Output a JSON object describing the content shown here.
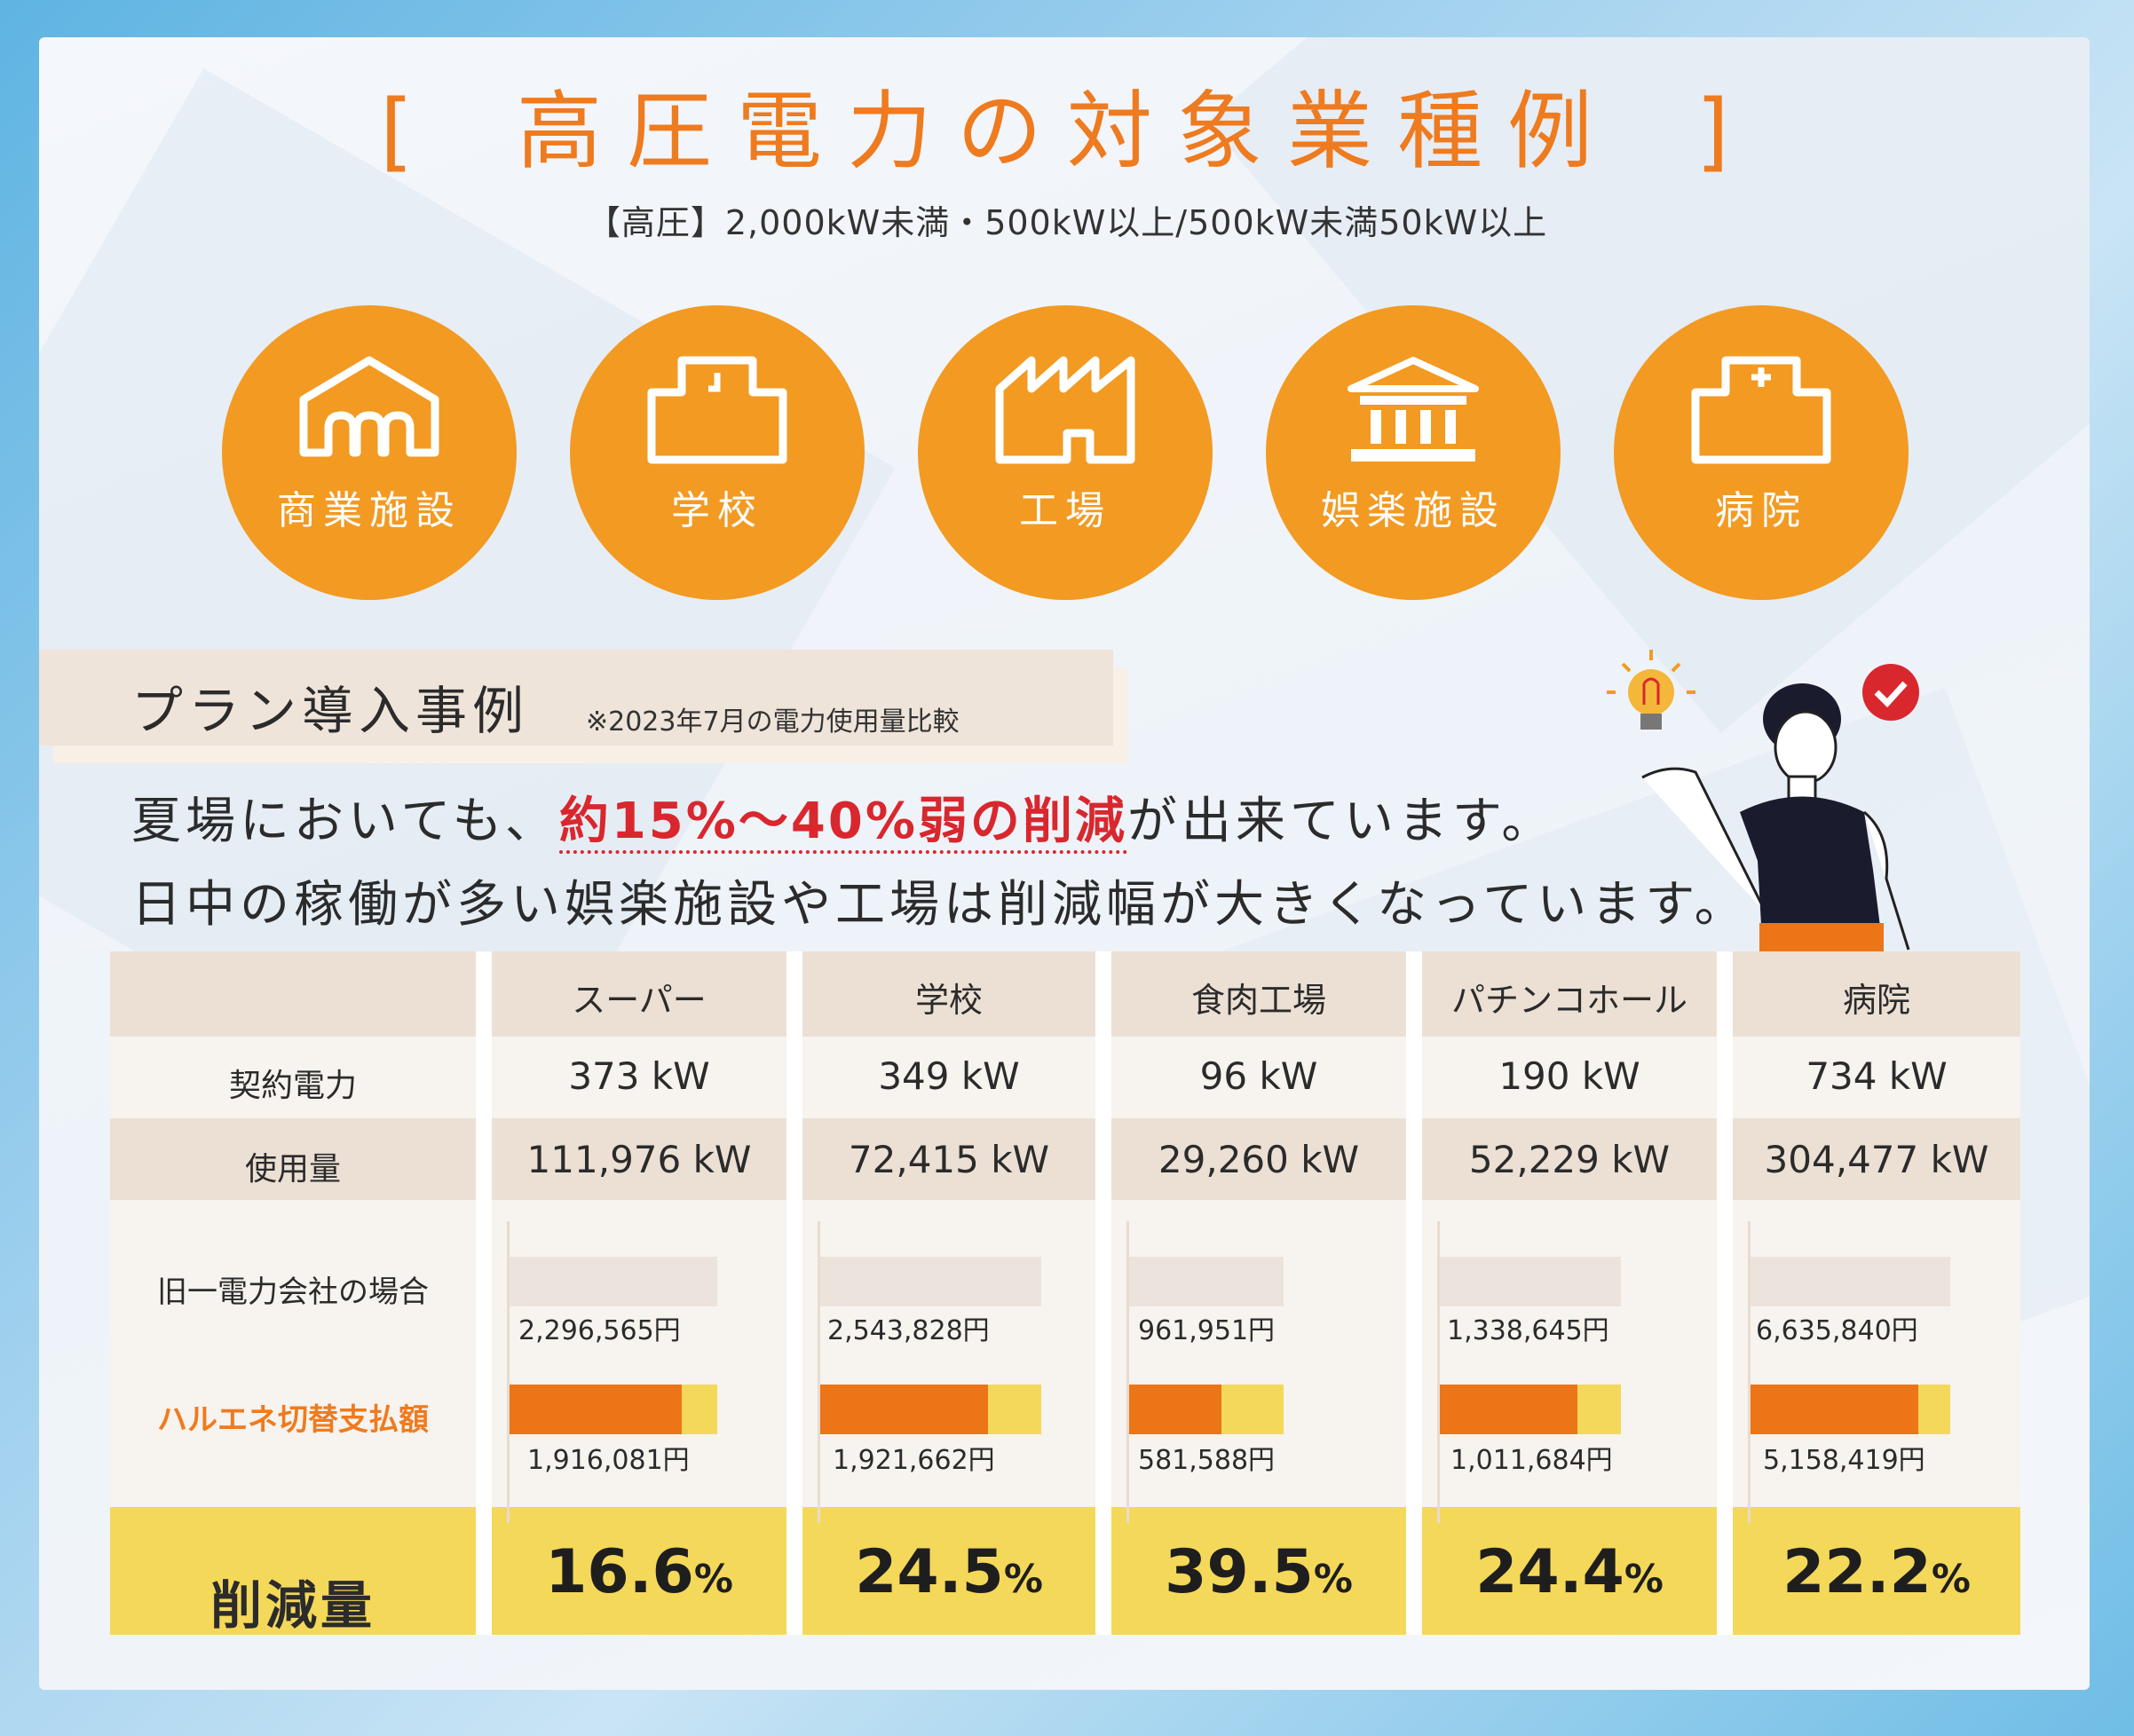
{
  "header": {
    "title_open": "[",
    "title": "高圧電力の対象業種例",
    "title_close": "]",
    "subtitle": "【高圧】2,000kW未満・500kW以上/500kW未満50kW以上"
  },
  "categories": [
    {
      "label": "商業施設",
      "icon": "shop-icon"
    },
    {
      "label": "学校",
      "icon": "school-icon"
    },
    {
      "label": "工場",
      "icon": "factory-icon"
    },
    {
      "label": "娯楽施設",
      "icon": "facility-icon"
    },
    {
      "label": "病院",
      "icon": "hospital-icon"
    }
  ],
  "plan": {
    "title": "プラン導入事例",
    "note": "※2023年7月の電力使用量比較"
  },
  "message": {
    "line1_pre": "夏場においても、",
    "line1_highlight": "約15%～40%弱の削減",
    "line1_post": "が出来ています。",
    "line2": "日中の稼働が多い娯楽施設や工場は削減幅が大きくなっています。"
  },
  "illustration": {
    "icons": [
      "lightbulb-icon",
      "check-badge-icon",
      "person-illustration"
    ]
  },
  "table": {
    "columns": [
      "スーパー",
      "学校",
      "食肉工場",
      "パチンコホール",
      "病院"
    ],
    "row_labels": {
      "contract": "契約電力",
      "usage": "使用量",
      "old": "旧一電力会社の場合",
      "new": "ハルエネ切替支払額",
      "reduction": "削減量"
    },
    "contract": [
      "373 kW",
      "349 kW",
      "96 kW",
      "190 kW",
      "734 kW"
    ],
    "usage": [
      "111,976 kW",
      "72,415 kW",
      "29,260 kW",
      "52,229 kW",
      "304,477 kW"
    ],
    "old_cost": [
      "2,296,565円",
      "2,543,828円",
      "961,951円",
      "1,338,645円",
      "6,635,840円"
    ],
    "new_cost": [
      "1,916,081円",
      "1,921,662円",
      "581,588円",
      "1,011,684円",
      "5,158,419円"
    ],
    "old_bar": [
      0.78,
      0.83,
      0.58,
      0.68,
      0.75
    ],
    "new_fill": [
      0.83,
      0.76,
      0.6,
      0.76,
      0.84
    ],
    "reduction_value": [
      "16.6",
      "24.5",
      "39.5",
      "24.4",
      "22.2"
    ],
    "reduction_unit": "%"
  },
  "colors": {
    "accent_orange": "#ee7b1f",
    "circle_orange": "#f29a22",
    "highlight_red": "#d9272e",
    "reduction_yellow": "#f4d85a",
    "bar_orange": "#ec7518"
  }
}
